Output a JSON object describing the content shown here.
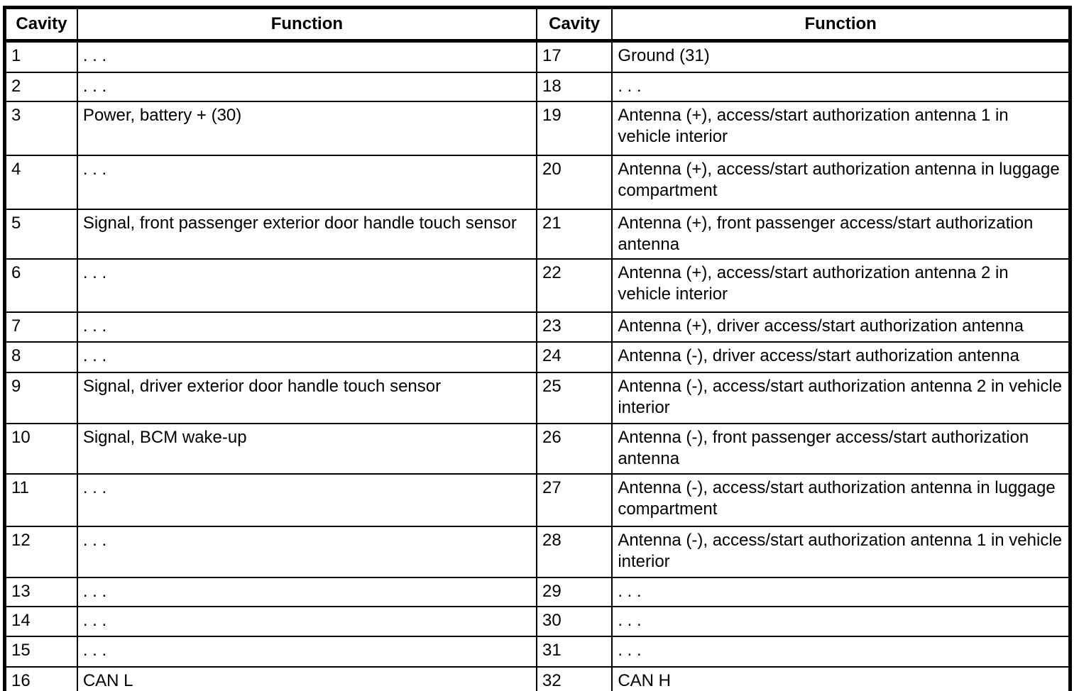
{
  "table": {
    "headers": [
      "Cavity",
      "Function",
      "Cavity",
      "Function"
    ],
    "left_rows": [
      {
        "cavity": "1",
        "function": ". . ."
      },
      {
        "cavity": "2",
        "function": ". . ."
      },
      {
        "cavity": "3",
        "function": "Power, battery + (30)"
      },
      {
        "cavity": "4",
        "function": ". . ."
      },
      {
        "cavity": "5",
        "function": "Signal, front passenger exterior door handle touch sensor"
      },
      {
        "cavity": "6",
        "function": ". . ."
      },
      {
        "cavity": "7",
        "function": ". . ."
      },
      {
        "cavity": "8",
        "function": ". . ."
      },
      {
        "cavity": "9",
        "function": "Signal, driver exterior door handle touch sensor"
      },
      {
        "cavity": "10",
        "function": "Signal, BCM wake-up"
      },
      {
        "cavity": "11",
        "function": ". . ."
      },
      {
        "cavity": "12",
        "function": ". . ."
      },
      {
        "cavity": "13",
        "function": ". . ."
      },
      {
        "cavity": "14",
        "function": ". . ."
      },
      {
        "cavity": "15",
        "function": ". . ."
      },
      {
        "cavity": "16",
        "function": "CAN L"
      }
    ],
    "right_rows": [
      {
        "cavity": "17",
        "function": "Ground (31)"
      },
      {
        "cavity": "18",
        "function": ". . ."
      },
      {
        "cavity": "19",
        "function": "Antenna (+), access/start authorization antenna 1 in vehicle interior"
      },
      {
        "cavity": "20",
        "function": "Antenna (+), access/start authorization antenna in luggage compartment"
      },
      {
        "cavity": "21",
        "function": "Antenna (+), front passenger access/start authorization antenna"
      },
      {
        "cavity": "22",
        "function": "Antenna (+), access/start authorization antenna 2 in vehicle interior"
      },
      {
        "cavity": "23",
        "function": "Antenna (+), driver access/start authorization antenna"
      },
      {
        "cavity": "24",
        "function": "Antenna (-), driver access/start authorization antenna"
      },
      {
        "cavity": "25",
        "function": "Antenna (-), access/start authorization antenna 2 in vehicle interior"
      },
      {
        "cavity": "26",
        "function": "Antenna (-), front passenger access/start authorization antenna"
      },
      {
        "cavity": "27",
        "function": "Antenna (-), access/start authorization antenna in luggage compartment"
      },
      {
        "cavity": "28",
        "function": "Antenna (-), access/start authorization antenna 1 in vehicle interior"
      },
      {
        "cavity": "29",
        "function": ". . ."
      },
      {
        "cavity": "30",
        "function": ". . ."
      },
      {
        "cavity": "31",
        "function": ". . ."
      },
      {
        "cavity": "32",
        "function": "CAN H"
      }
    ]
  }
}
